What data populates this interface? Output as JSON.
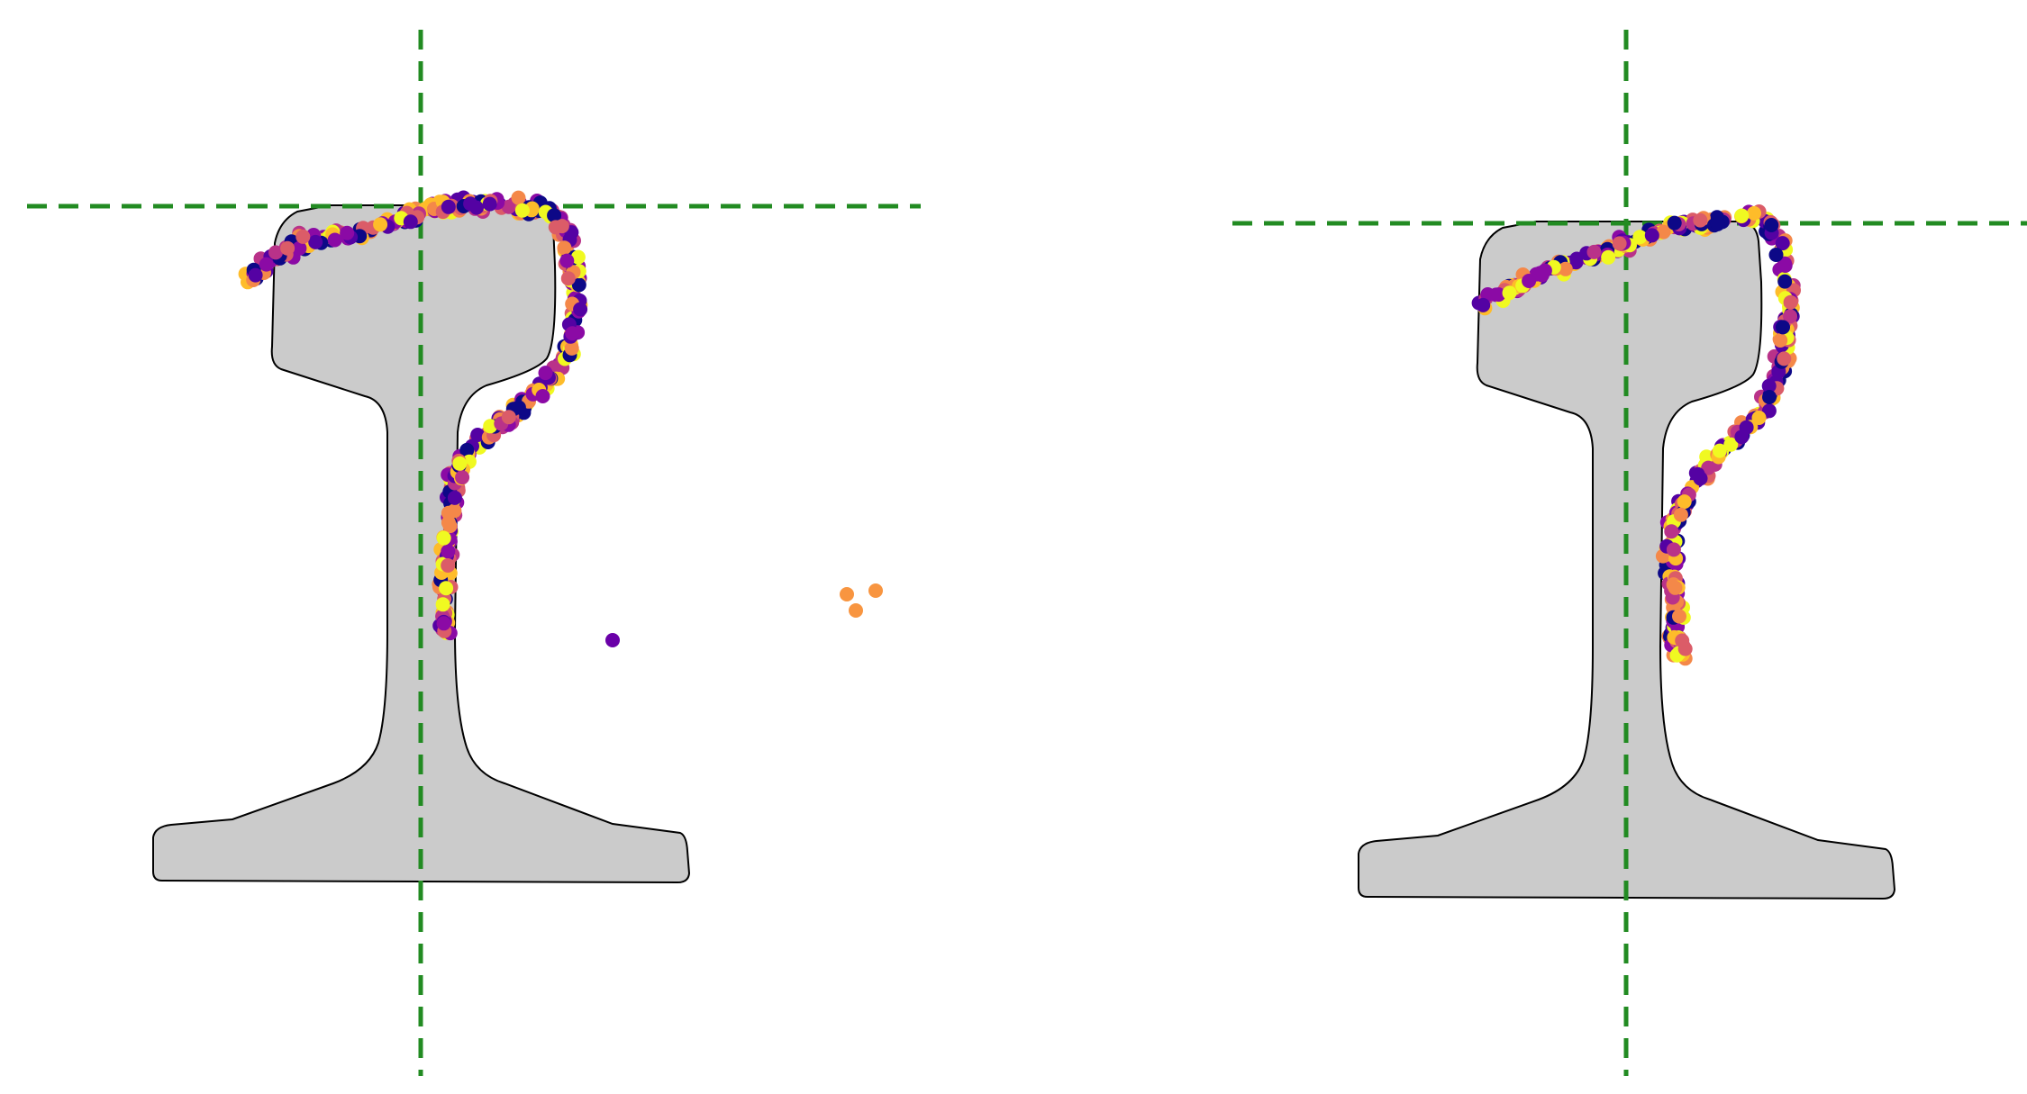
{
  "figure": {
    "panels": [
      {
        "id": "left",
        "rail_fill": "#cbcbcb",
        "guide_color": "#228b22",
        "colormap": "plasma",
        "point_count": 420,
        "outlier_count": 4
      },
      {
        "id": "right",
        "rail_fill": "#cbcbcb",
        "guide_color": "#228b22",
        "colormap": "plasma",
        "point_count": 380,
        "outlier_count": 0
      }
    ],
    "palette": [
      "#0d0887",
      "#5402a3",
      "#8b0aa5",
      "#b93289",
      "#db5c68",
      "#f48849",
      "#febc2a",
      "#f0f921"
    ]
  }
}
